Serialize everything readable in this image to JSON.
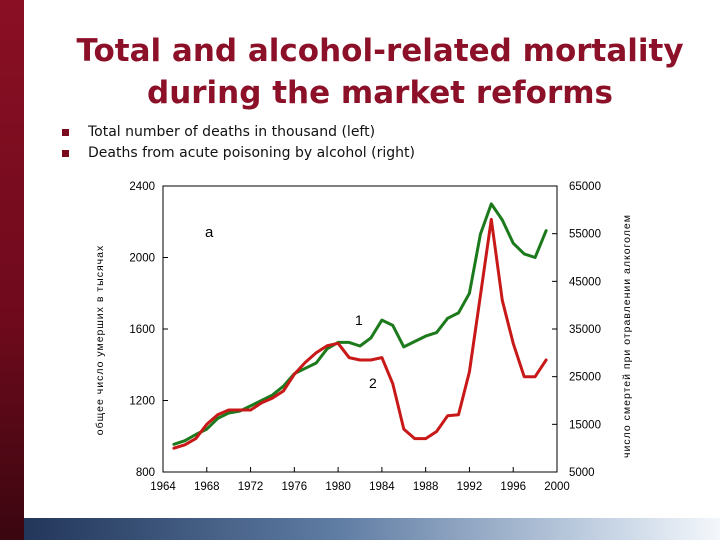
{
  "slide": {
    "title": "Total and alcohol-related mortality during the market reforms",
    "bullets": [
      {
        "text": "Total number of deaths in thousand (left)",
        "icon": "square-bullet-icon"
      },
      {
        "text": "Deaths from acute poisoning by alcohol (right)",
        "icon": "square-bullet-icon"
      }
    ],
    "colors": {
      "title": "#8b1028",
      "sidebar": "#7a0b1f",
      "series1": "#1c7a1c",
      "series2": "#c81818"
    }
  },
  "chart_data": {
    "type": "line",
    "ylabel": "общее число умерших в тысячах",
    "ylabel_right": "число смертей при отравлении алкоголем",
    "panel_label": "a",
    "xlim": [
      1964,
      2000
    ],
    "ylim": [
      800,
      2400
    ],
    "ylim_right": [
      5000,
      65000
    ],
    "x_ticks": [
      "1964",
      "1968",
      "1972",
      "1976",
      "1980",
      "1984",
      "1988",
      "1992",
      "1996",
      "2000"
    ],
    "y_ticks": [
      "800",
      "1200",
      "1600",
      "2000",
      "2400"
    ],
    "y_right_ticks": [
      "5000",
      "15000",
      "25000",
      "35000",
      "45000",
      "55000",
      "65000"
    ],
    "series": [
      {
        "name": "1",
        "axis": "left",
        "color": "#1c7a1c",
        "x": [
          1965,
          1966,
          1967,
          1968,
          1969,
          1970,
          1971,
          1972,
          1973,
          1974,
          1975,
          1976,
          1977,
          1978,
          1979,
          1980,
          1981,
          1982,
          1983,
          1984,
          1985,
          1986,
          1987,
          1988,
          1989,
          1990,
          1991,
          1992,
          1993,
          1994,
          1995,
          1996,
          1997,
          1998,
          1999
        ],
        "y": [
          955,
          975,
          1010,
          1040,
          1100,
          1130,
          1140,
          1170,
          1200,
          1230,
          1280,
          1350,
          1380,
          1410,
          1490,
          1525,
          1525,
          1505,
          1550,
          1650,
          1620,
          1500,
          1530,
          1560,
          1580,
          1660,
          1690,
          1800,
          2130,
          2300,
          2210,
          2080,
          2020,
          2000,
          2150
        ]
      },
      {
        "name": "2",
        "axis": "right",
        "color": "#c81818",
        "x": [
          1965,
          1966,
          1967,
          1968,
          1969,
          1970,
          1971,
          1972,
          1973,
          1974,
          1975,
          1976,
          1977,
          1978,
          1979,
          1980,
          1981,
          1982,
          1983,
          1984,
          1985,
          1986,
          1987,
          1988,
          1989,
          1990,
          1991,
          1992,
          1993,
          1994,
          1995,
          1996,
          1997,
          1998,
          1999
        ],
        "y": [
          10000,
          10700,
          12000,
          15000,
          17000,
          18000,
          18000,
          18000,
          19500,
          20500,
          22000,
          25500,
          28000,
          30000,
          31500,
          32000,
          29000,
          28500,
          28500,
          29000,
          23500,
          14000,
          12000,
          12000,
          13500,
          16800,
          17000,
          26000,
          42000,
          58000,
          41000,
          32000,
          25000,
          25000,
          28500
        ]
      }
    ],
    "annotations": [
      "1",
      "2"
    ]
  }
}
